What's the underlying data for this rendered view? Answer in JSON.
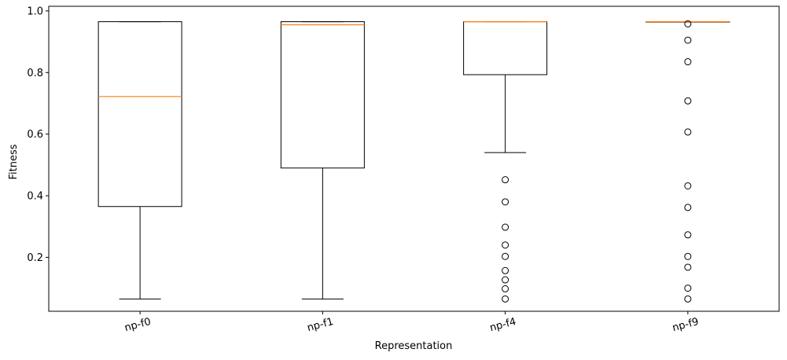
{
  "chart_data": {
    "type": "boxplot",
    "title": "",
    "xlabel": "Representation",
    "ylabel": "Fitness",
    "ylim": [
      0.025,
      1.015
    ],
    "yticks": [
      0.2,
      0.4,
      0.6,
      0.8,
      1.0
    ],
    "ytick_labels": [
      "0.2",
      "0.4",
      "0.6",
      "0.8",
      "1.0"
    ],
    "grid": false,
    "legend": "none",
    "colors": {
      "box": "#000000",
      "median": "#ff7f0e",
      "flier": "#000000"
    },
    "categories": [
      "np-f0",
      "np-f1",
      "np-f4",
      "np-f9"
    ],
    "boxes": [
      {
        "whisker_low": 0.065,
        "q1": 0.365,
        "median": 0.722,
        "q3": 0.965,
        "whisker_high": 0.965,
        "fliers": []
      },
      {
        "whisker_low": 0.065,
        "q1": 0.49,
        "median": 0.955,
        "q3": 0.965,
        "whisker_high": 0.965,
        "fliers": []
      },
      {
        "whisker_low": 0.54,
        "q1": 0.793,
        "median": 0.965,
        "q3": 0.965,
        "whisker_high": 0.965,
        "fliers": [
          0.452,
          0.38,
          0.298,
          0.24,
          0.203,
          0.157,
          0.127,
          0.098,
          0.065
        ]
      },
      {
        "whisker_low": 0.965,
        "q1": 0.965,
        "median": 0.965,
        "q3": 0.965,
        "whisker_high": 0.965,
        "fliers": [
          0.958,
          0.905,
          0.835,
          0.708,
          0.607,
          0.432,
          0.362,
          0.273,
          0.203,
          0.168,
          0.1,
          0.065
        ]
      }
    ]
  }
}
